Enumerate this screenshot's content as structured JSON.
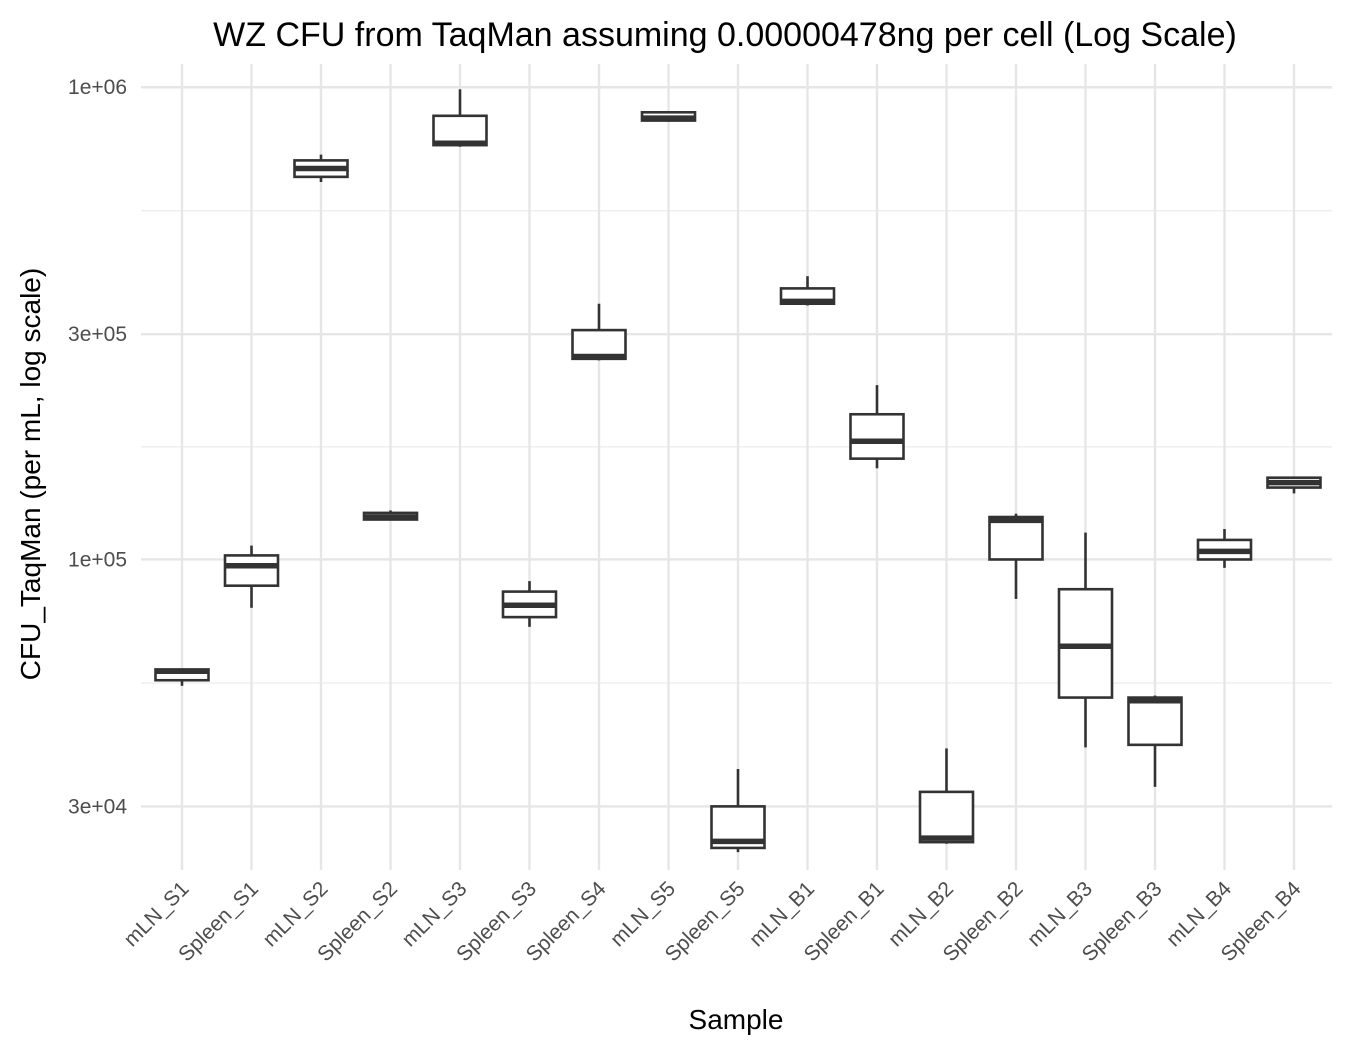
{
  "chart_data": {
    "type": "boxplot",
    "title": "WZ CFU from TaqMan assuming 0.00000478ng per cell (Log Scale)",
    "xlabel": "Sample",
    "ylabel": "CFU_TaqMan (per mL, log scale)",
    "y_scale": "log10",
    "ylim": [
      22000,
      1120000
    ],
    "y_ticks": [
      {
        "value": 30000,
        "label": "3e+04"
      },
      {
        "value": 100000,
        "label": "1e+05"
      },
      {
        "value": 300000,
        "label": "3e+05"
      },
      {
        "value": 1000000,
        "label": "1e+06"
      }
    ],
    "y_minor_grid": [
      54772,
      173205,
      547723
    ],
    "grid": true,
    "legend": "none",
    "categories": [
      "mLN_S1",
      "Spleen_S1",
      "mLN_S2",
      "Spleen_S2",
      "mLN_S3",
      "Spleen_S3",
      "Spleen_S4",
      "mLN_S5",
      "Spleen_S5",
      "mLN_B1",
      "Spleen_B1",
      "mLN_B2",
      "Spleen_B2",
      "mLN_B3",
      "Spleen_B3",
      "mLN_B4",
      "Spleen_B4"
    ],
    "boxes": [
      {
        "category": "mLN_S1",
        "min": 54000,
        "q1": 55500,
        "median": 58000,
        "q3": 58500,
        "max": 58500
      },
      {
        "category": "Spleen_S1",
        "min": 79000,
        "q1": 88000,
        "median": 97000,
        "q3": 102000,
        "max": 107000
      },
      {
        "category": "mLN_S2",
        "min": 630000,
        "q1": 646000,
        "median": 673000,
        "q3": 700000,
        "max": 720000
      },
      {
        "category": "Spleen_S2",
        "min": 121000,
        "q1": 121500,
        "median": 123000,
        "q3": 125500,
        "max": 127000
      },
      {
        "category": "mLN_S3",
        "min": 748000,
        "q1": 754000,
        "median": 761000,
        "q3": 870000,
        "max": 990000
      },
      {
        "category": "Spleen_S3",
        "min": 72000,
        "q1": 75500,
        "median": 80000,
        "q3": 85500,
        "max": 90000
      },
      {
        "category": "Spleen_S4",
        "min": 264000,
        "q1": 266000,
        "median": 269000,
        "q3": 306000,
        "max": 348000
      },
      {
        "category": "mLN_S5",
        "min": 845000,
        "q1": 850000,
        "median": 860000,
        "q3": 885000,
        "max": 890000
      },
      {
        "category": "Spleen_S5",
        "min": 24000,
        "q1": 24500,
        "median": 25300,
        "q3": 30000,
        "max": 36000
      },
      {
        "category": "mLN_B1",
        "min": 345000,
        "q1": 348000,
        "median": 352000,
        "q3": 375000,
        "max": 398000
      },
      {
        "category": "Spleen_B1",
        "min": 156000,
        "q1": 163500,
        "median": 178000,
        "q3": 203000,
        "max": 234000
      },
      {
        "category": "mLN_B2",
        "min": 25000,
        "q1": 25200,
        "median": 25700,
        "q3": 32200,
        "max": 39800
      },
      {
        "category": "Spleen_B2",
        "min": 82500,
        "q1": 100000,
        "median": 121000,
        "q3": 123000,
        "max": 125000
      },
      {
        "category": "mLN_B3",
        "min": 40000,
        "q1": 51000,
        "median": 65500,
        "q3": 86500,
        "max": 114000
      },
      {
        "category": "Spleen_B3",
        "min": 33000,
        "q1": 40500,
        "median": 50200,
        "q3": 51000,
        "max": 51500
      },
      {
        "category": "mLN_B4",
        "min": 96000,
        "q1": 100000,
        "median": 104000,
        "q3": 110000,
        "max": 116000
      },
      {
        "category": "Spleen_B4",
        "min": 138000,
        "q1": 142000,
        "median": 145500,
        "q3": 149000,
        "max": 149000
      }
    ]
  }
}
